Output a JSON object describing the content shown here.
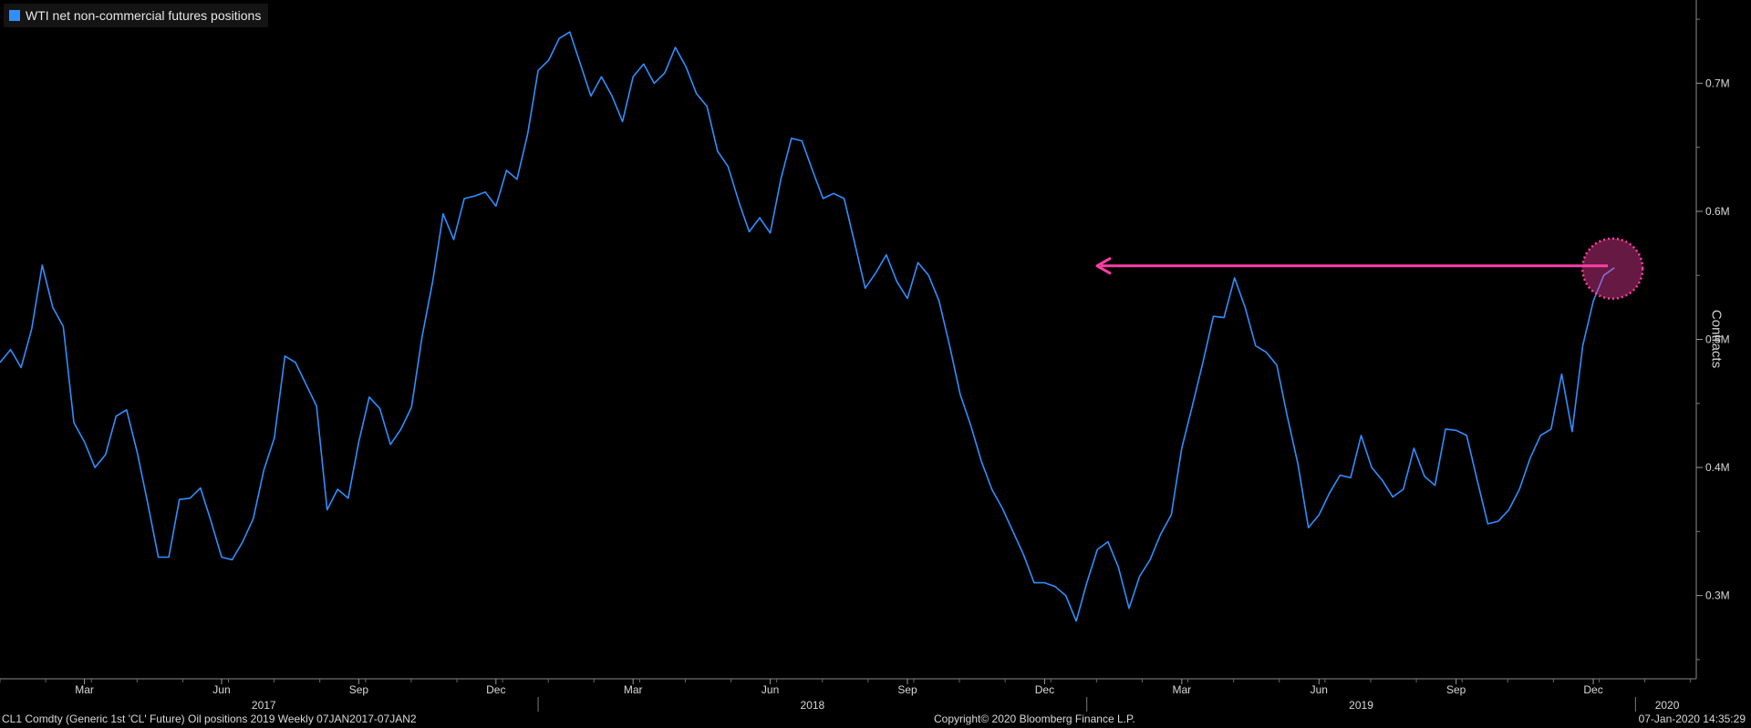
{
  "legend": {
    "label": "WTI net non-commercial futures positions",
    "color": "#2f8fff"
  },
  "footer": {
    "left": "CL1 Comdty (Generic 1st 'CL' Future) Oil positions 2019  Weekly 07JAN2017-07JAN2",
    "center": "Copyright© 2020 Bloomberg Finance L.P.",
    "right": "07-Jan-2020 14:35:29"
  },
  "annotation": {
    "arrow_color": "#ff3fa4",
    "circle_color": "#ff3fa4",
    "level": 0.556
  },
  "chart_data": {
    "type": "line",
    "title": "",
    "ylabel": "Contracts",
    "xlabel": "",
    "ylim": [
      0.235,
      0.765
    ],
    "y_ticks": [
      {
        "value": 0.3,
        "label": "0.3M"
      },
      {
        "value": 0.4,
        "label": "0.4M"
      },
      {
        "value": 0.5,
        "label": "0.5M"
      },
      {
        "value": 0.6,
        "label": "0.6M"
      },
      {
        "value": 0.7,
        "label": "0.7M"
      }
    ],
    "month_ticks": [
      "Mar",
      "Jun",
      "Sep",
      "Dec",
      "Mar",
      "Jun",
      "Sep",
      "Dec",
      "Mar",
      "Jun",
      "Sep",
      "Dec"
    ],
    "month_tick_weeks": [
      8,
      21,
      34,
      47,
      60,
      73,
      86,
      99,
      112,
      125,
      138,
      151
    ],
    "year_labels": [
      "2017",
      "2018",
      "2019",
      "2020"
    ],
    "year_label_weeks": [
      25,
      77,
      129,
      158
    ],
    "year_divider_weeks": [
      51,
      103,
      155
    ],
    "x_range": [
      0,
      162
    ],
    "series": [
      {
        "name": "WTI net non-commercial futures positions",
        "color": "#2f8fff",
        "values": [
          0.482,
          0.492,
          0.478,
          0.508,
          0.558,
          0.525,
          0.51,
          0.435,
          0.42,
          0.4,
          0.41,
          0.44,
          0.445,
          0.412,
          0.372,
          0.33,
          0.33,
          0.375,
          0.376,
          0.384,
          0.358,
          0.33,
          0.328,
          0.342,
          0.36,
          0.398,
          0.423,
          0.487,
          0.482,
          0.465,
          0.448,
          0.367,
          0.383,
          0.376,
          0.42,
          0.455,
          0.446,
          0.418,
          0.43,
          0.447,
          0.502,
          0.545,
          0.598,
          0.578,
          0.61,
          0.612,
          0.615,
          0.604,
          0.632,
          0.625,
          0.66,
          0.71,
          0.718,
          0.735,
          0.74,
          0.715,
          0.69,
          0.705,
          0.69,
          0.67,
          0.705,
          0.715,
          0.7,
          0.708,
          0.728,
          0.713,
          0.692,
          0.682,
          0.647,
          0.635,
          0.608,
          0.584,
          0.595,
          0.583,
          0.625,
          0.657,
          0.655,
          0.632,
          0.61,
          0.614,
          0.61,
          0.575,
          0.54,
          0.552,
          0.566,
          0.545,
          0.532,
          0.56,
          0.55,
          0.53,
          0.495,
          0.457,
          0.433,
          0.405,
          0.383,
          0.368,
          0.35,
          0.332,
          0.31,
          0.31,
          0.307,
          0.3,
          0.28,
          0.31,
          0.336,
          0.342,
          0.322,
          0.29,
          0.315,
          0.328,
          0.348,
          0.363,
          0.415,
          0.448,
          0.482,
          0.518,
          0.517,
          0.548,
          0.525,
          0.495,
          0.49,
          0.48,
          0.44,
          0.403,
          0.353,
          0.363,
          0.38,
          0.394,
          0.392,
          0.425,
          0.4,
          0.39,
          0.377,
          0.383,
          0.415,
          0.393,
          0.386,
          0.43,
          0.429,
          0.425,
          0.39,
          0.356,
          0.358,
          0.367,
          0.383,
          0.407,
          0.425,
          0.43,
          0.473,
          0.428,
          0.495,
          0.53,
          0.55,
          0.556
        ]
      }
    ]
  }
}
